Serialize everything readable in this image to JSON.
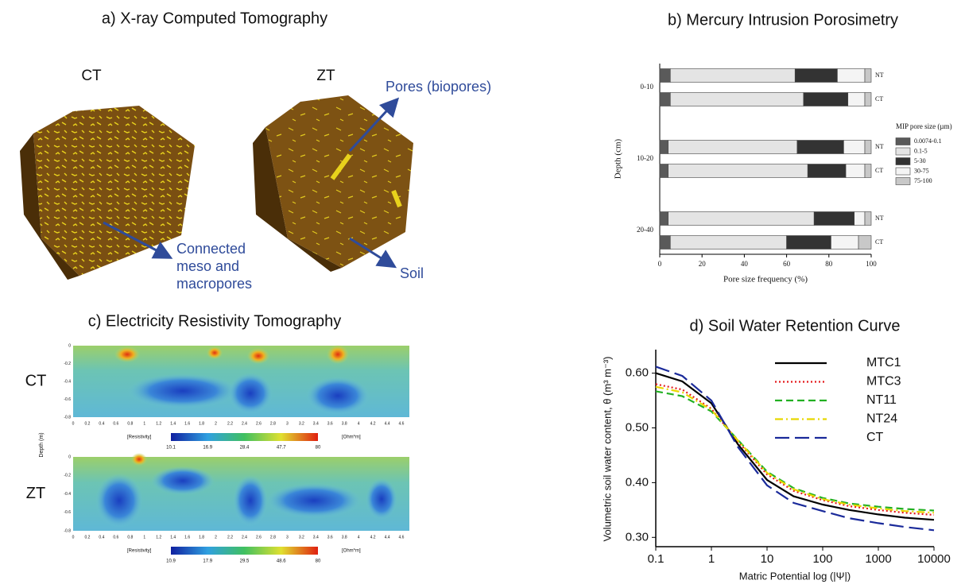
{
  "figures": {
    "a": {
      "title": "a) X-ray Computed Tomography",
      "left": "CT",
      "right": "ZT",
      "pores": "Pores (biopores)",
      "connected": [
        "Connected",
        "meso and",
        "macropores"
      ],
      "soil": "Soil"
    },
    "c": {
      "title": "c) Electricity Resistivity Tomography",
      "rows": [
        "CT",
        "ZT"
      ],
      "ylabel": "Depth (m)",
      "xticks": [
        0,
        0.2,
        0.4,
        0.6,
        0.8,
        1,
        1.2,
        1.4,
        1.6,
        1.8,
        2,
        2.2,
        2.4,
        2.6,
        2.8,
        3,
        3.2,
        3.4,
        3.6,
        3.8,
        4,
        4.2,
        4.4,
        4.6
      ],
      "yticks": [
        0,
        -0.2,
        -0.4,
        -0.6,
        -0.8
      ],
      "colorbars": [
        {
          "label": "[Resistivity]",
          "unit": "[Ohm*m]",
          "ticks": [
            "10.1",
            "16.9",
            "28.4",
            "47.7",
            "80"
          ]
        },
        {
          "label": "[Resistivity]",
          "unit": "[Ohm*m]",
          "ticks": [
            "10.9",
            "17.9",
            "29.5",
            "48.6",
            "80"
          ]
        }
      ]
    }
  },
  "chart_data": [
    {
      "type": "bar",
      "orientation": "horizontal",
      "stacked": true,
      "title": "b) Mercury Intrusion Porosimetry",
      "xlabel": "Pore size frequency (%)",
      "ylabel": "Depth (cm)",
      "categories": [
        "NT",
        "CT",
        "NT",
        "CT",
        "NT",
        "CT"
      ],
      "groups": [
        "0-10",
        "10-20",
        "20-40"
      ],
      "legend_title": "MIP pore size (µm)",
      "series": [
        {
          "name": "0.0074-0.1",
          "color": "#5a5a5a",
          "values": [
            5,
            5,
            4,
            4,
            4,
            5
          ]
        },
        {
          "name": "0.1-5",
          "color": "#e4e4e4",
          "values": [
            59,
            63,
            61,
            66,
            69,
            55
          ]
        },
        {
          "name": "5-30",
          "color": "#333333",
          "values": [
            20,
            21,
            22,
            18,
            19,
            21
          ]
        },
        {
          "name": "30-75",
          "color": "#f4f4f4",
          "values": [
            13,
            8,
            10,
            9,
            5,
            13
          ]
        },
        {
          "name": "75-100",
          "color": "#c8c8c8",
          "values": [
            3,
            3,
            3,
            3,
            3,
            6
          ]
        }
      ],
      "xlim": [
        0,
        100
      ],
      "xticks": [
        0,
        20,
        40,
        60,
        80,
        100
      ]
    },
    {
      "type": "line",
      "title": "d) Soil Water Retention Curve",
      "xlabel": "Matric Potential log (|Ψ|)",
      "ylabel": "Volumetric soil water content, θ (m³ m⁻³)",
      "x": [
        0.1,
        0.3,
        1,
        3,
        10,
        30,
        100,
        300,
        1000,
        3000,
        10000
      ],
      "xscale": "log",
      "xlim": [
        0.1,
        10000
      ],
      "xticks": [
        0.1,
        1,
        10,
        100,
        1000,
        10000
      ],
      "ylim": [
        0.283,
        0.643
      ],
      "yticks": [
        {
          "value": 0.3,
          "label": "0.30"
        },
        {
          "value": 0.4,
          "label": "0.40"
        },
        {
          "value": 0.5,
          "label": "0.50"
        },
        {
          "value": 0.6,
          "label": "0.60"
        }
      ],
      "series": [
        {
          "name": "MTC1",
          "color": "#000000",
          "dash": "solid",
          "values": [
            0.6,
            0.585,
            0.545,
            0.47,
            0.405,
            0.375,
            0.36,
            0.35,
            0.342,
            0.336,
            0.332
          ]
        },
        {
          "name": "MTC3",
          "color": "#e41a1c",
          "dash": "dotted",
          "values": [
            0.58,
            0.57,
            0.535,
            0.475,
            0.415,
            0.385,
            0.368,
            0.357,
            0.35,
            0.345,
            0.341
          ]
        },
        {
          "name": "NT11",
          "color": "#22b022",
          "dash": "dashed",
          "values": [
            0.567,
            0.558,
            0.53,
            0.478,
            0.42,
            0.39,
            0.372,
            0.362,
            0.356,
            0.352,
            0.349
          ]
        },
        {
          "name": "NT24",
          "color": "#e8d800",
          "dash": "dashdot",
          "values": [
            0.575,
            0.565,
            0.533,
            0.477,
            0.418,
            0.388,
            0.37,
            0.36,
            0.353,
            0.348,
            0.345
          ]
        },
        {
          "name": "CT",
          "color": "#1a2a9a",
          "dash": "longdash",
          "values": [
            0.612,
            0.595,
            0.55,
            0.465,
            0.395,
            0.363,
            0.348,
            0.335,
            0.326,
            0.319,
            0.313
          ]
        }
      ]
    }
  ]
}
